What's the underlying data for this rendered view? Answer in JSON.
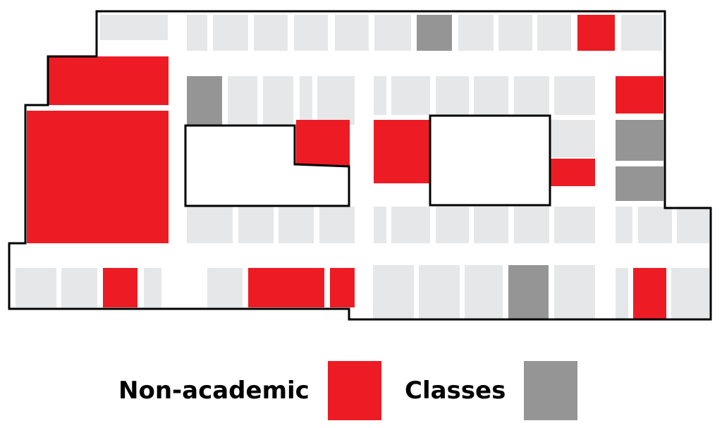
{
  "colors": {
    "non_academic": "#ed1c24",
    "classes": "#959595",
    "other_room": "#e6e7e8",
    "outline": "#000000",
    "background": "#ffffff"
  },
  "legend": {
    "non_academic_label": "Non-academic",
    "classes_label": "Classes"
  }
}
